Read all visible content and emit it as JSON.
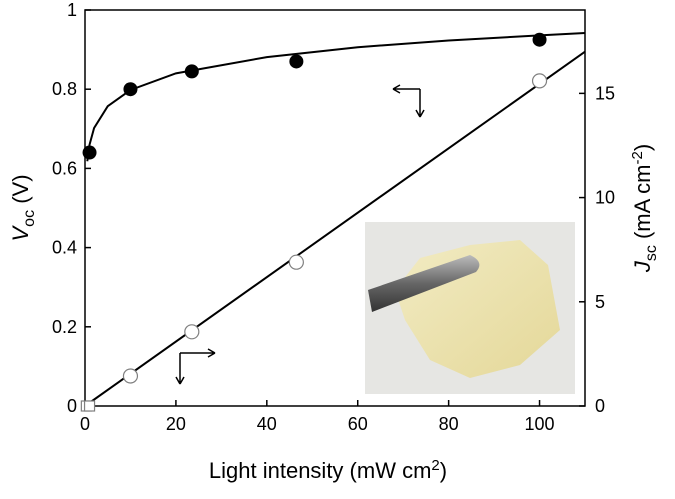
{
  "chart_data": {
    "type": "scatter",
    "x_label": {
      "main": "Light intensity (mW cm",
      "sup": "2",
      "end": ")"
    },
    "y_label": {
      "main": "V",
      "sub": "oc",
      "end": " (V)"
    },
    "y2_label": {
      "main": "J",
      "sub": "sc",
      "mid": " (mA cm",
      "sup": "-2",
      "end": ")"
    },
    "xlim": [
      0,
      110
    ],
    "xticks": [
      0,
      20,
      40,
      60,
      80,
      100
    ],
    "ylim": [
      0,
      1
    ],
    "yticks": [
      0,
      0.2,
      0.4,
      0.6,
      0.8,
      1
    ],
    "y2lim": [
      0,
      19
    ],
    "y2ticks": [
      0,
      5,
      10,
      15
    ],
    "series": [
      {
        "marker": "filled-circle",
        "color": "#000000",
        "axis": "y",
        "x": [
          1,
          10,
          23.5,
          46.5,
          100
        ],
        "values": [
          0.64,
          0.8,
          0.845,
          0.87,
          0.925
        ]
      },
      {
        "marker": "open-circle",
        "color": "#808080",
        "axis": "y2",
        "x": [
          10,
          23.5,
          46.5,
          100
        ],
        "values": [
          1.44,
          3.56,
          6.9,
          15.6
        ]
      },
      {
        "marker": "open-square",
        "color": "#808080",
        "axis": "y2",
        "x": [
          0.3,
          1
        ],
        "values": [
          0,
          0
        ]
      },
      {
        "marker": "line",
        "color": "#000000",
        "axis": "y",
        "x": [
          0.5,
          1,
          2,
          5,
          10,
          20,
          40,
          60,
          80,
          100,
          110
        ],
        "values": [
          0.618,
          0.66,
          0.702,
          0.757,
          0.798,
          0.84,
          0.881,
          0.906,
          0.923,
          0.936,
          0.942
        ]
      },
      {
        "marker": "line",
        "color": "#000000",
        "axis": "y2",
        "x": [
          0,
          110
        ],
        "values": [
          0,
          17.0
        ]
      }
    ]
  }
}
